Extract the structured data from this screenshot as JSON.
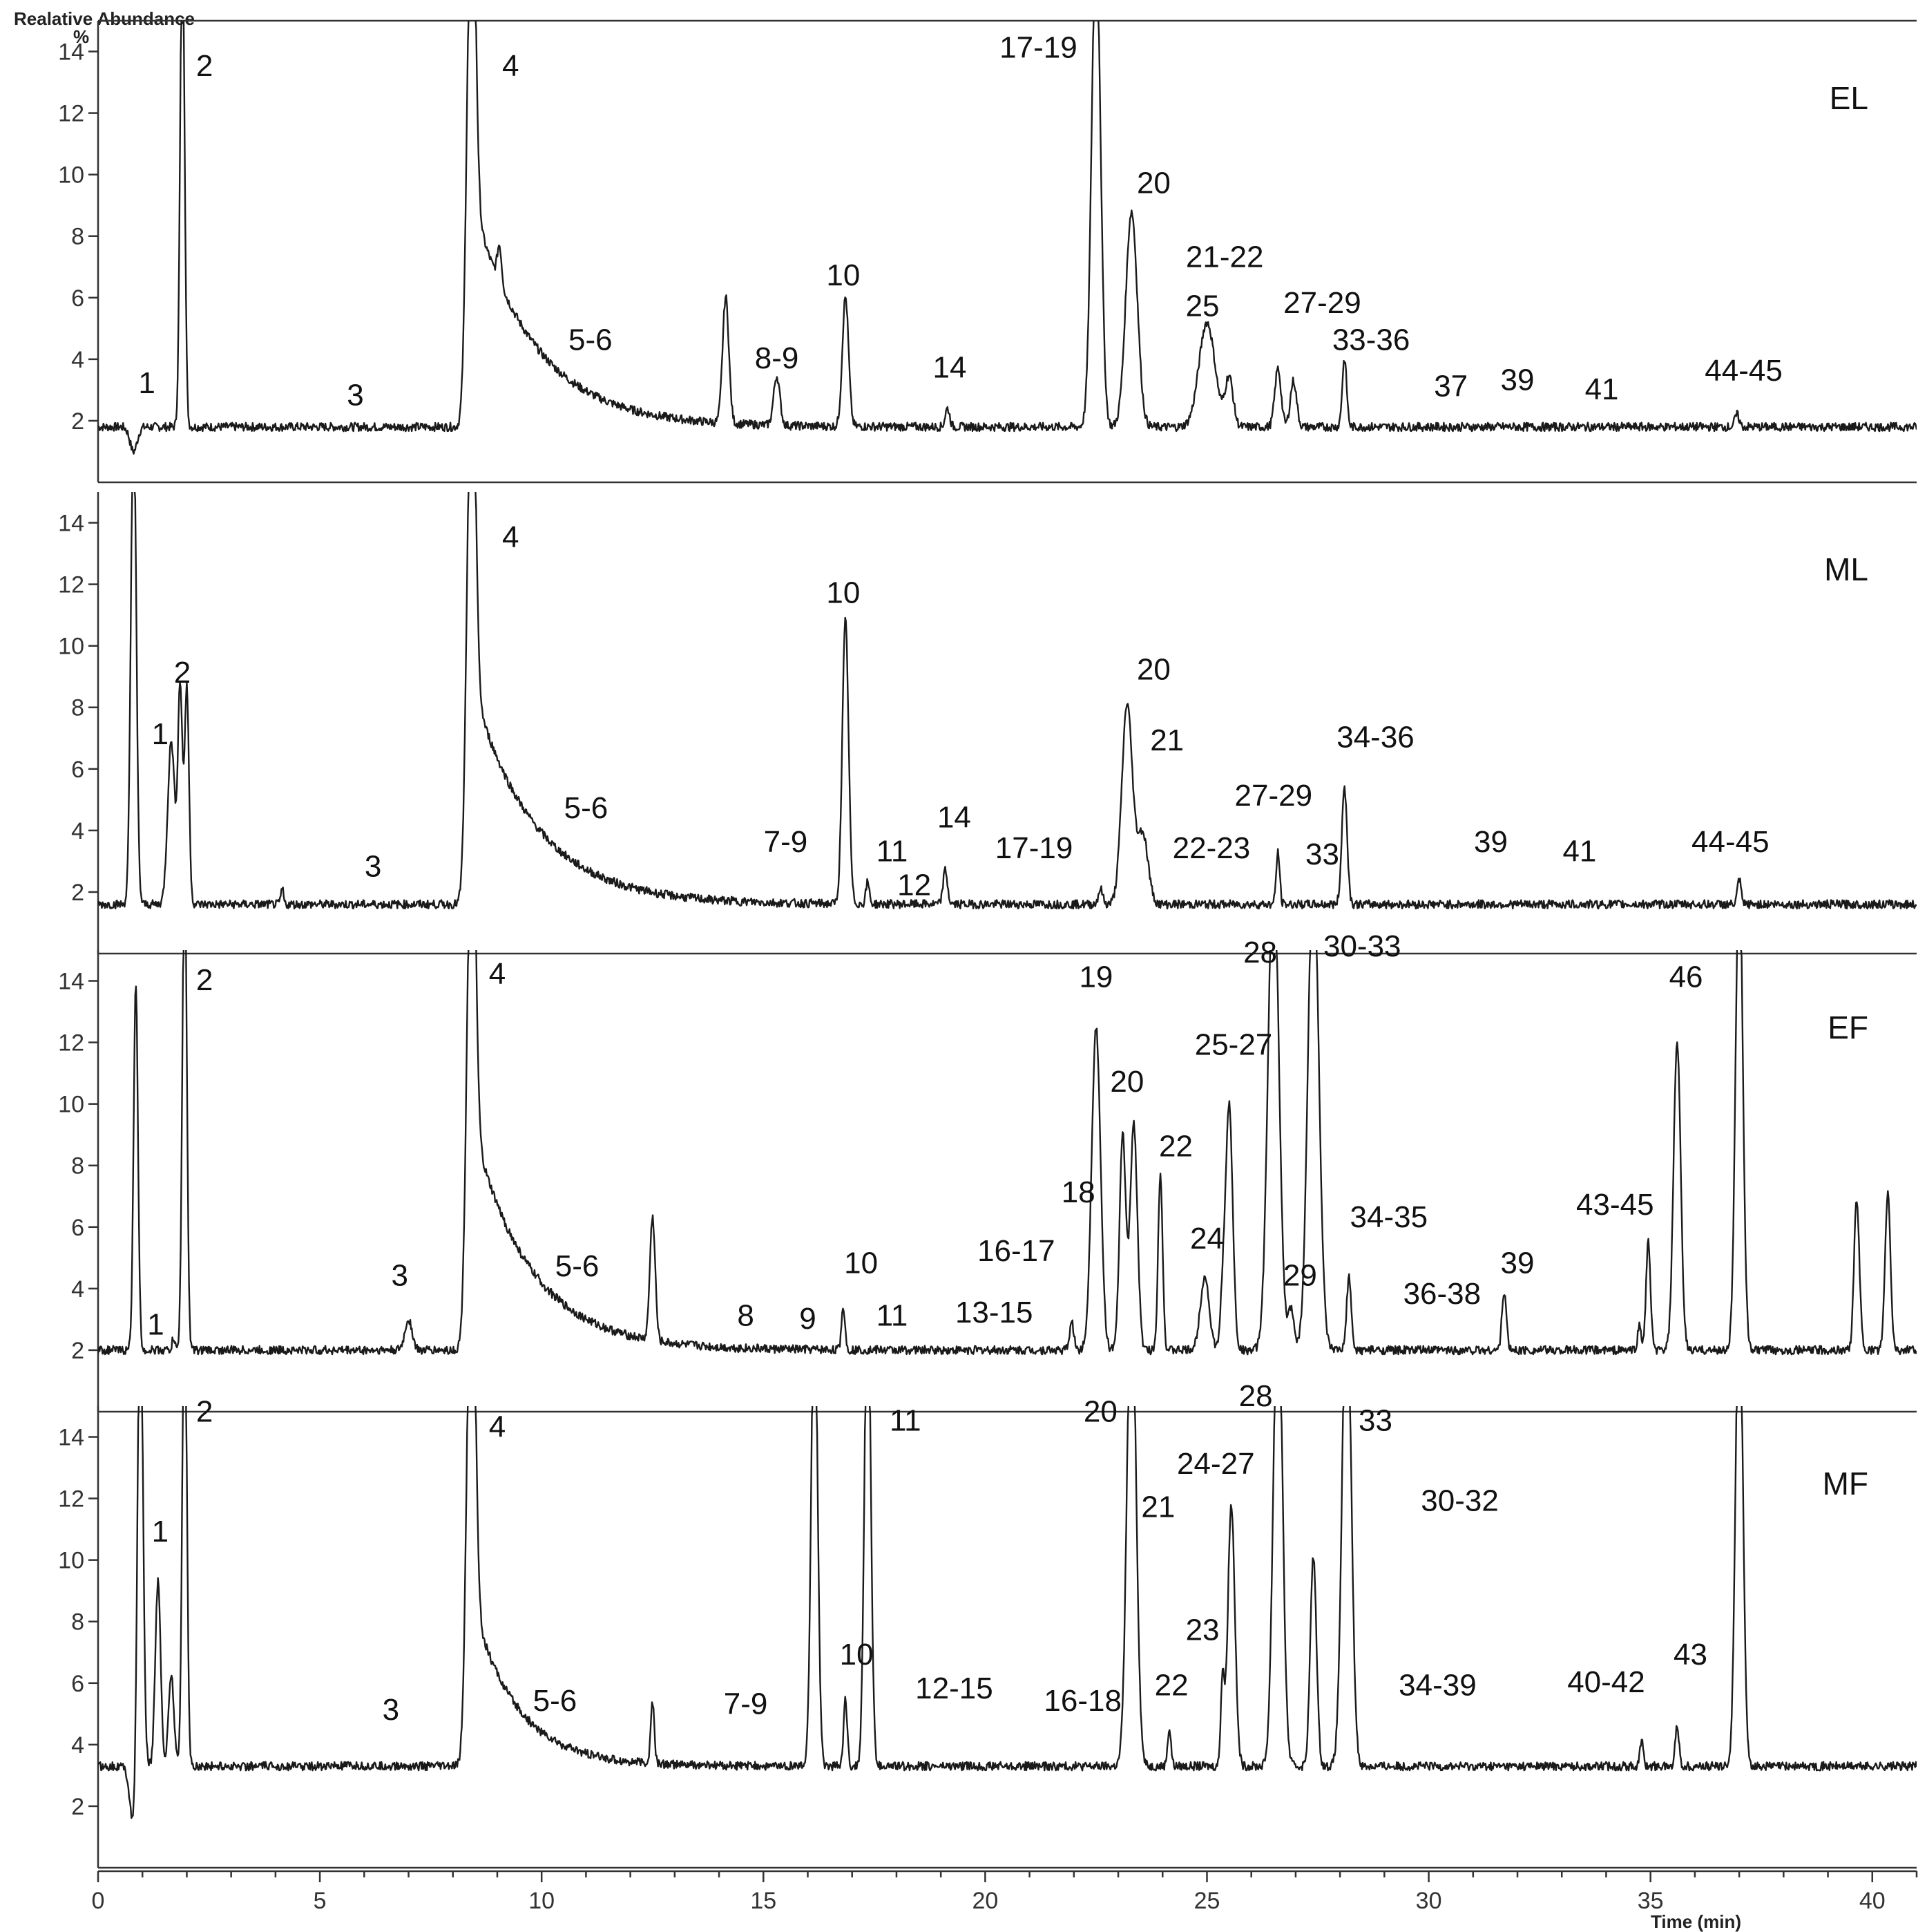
{
  "chart_data": {
    "type": "line",
    "title": "",
    "ylabel": "Realative Abundance",
    "ylabel_unit": "%",
    "xlabel": "Time (min)",
    "xlim": [
      0,
      41
    ],
    "ylim": [
      0,
      15
    ],
    "x_ticks": [
      0,
      5,
      10,
      15,
      20,
      25,
      30,
      35,
      40
    ],
    "y_ticks": [
      2,
      4,
      6,
      8,
      10,
      12,
      14
    ],
    "panels": [
      {
        "name": "EL",
        "baseline": 1.8,
        "peaks": [
          {
            "t": 0.8,
            "h": -0.8,
            "w": 0.08
          },
          {
            "t": 1.9,
            "h": 16,
            "w": 0.05
          },
          {
            "t": 8.4,
            "h": 16,
            "w": 0.09,
            "tail": [
              7.5,
              1.4
            ]
          },
          {
            "t": 9.05,
            "h": 1.2,
            "w": 0.05
          },
          {
            "t": 14.15,
            "h": 4.1,
            "w": 0.07
          },
          {
            "t": 15.3,
            "h": 1.6,
            "w": 0.07
          },
          {
            "t": 16.85,
            "h": 4.2,
            "w": 0.07
          },
          {
            "t": 19.15,
            "h": 0.6,
            "w": 0.05
          },
          {
            "t": 22.5,
            "h": 16,
            "w": 0.1
          },
          {
            "t": 23.3,
            "h": 7.0,
            "w": 0.13
          },
          {
            "t": 25.0,
            "h": 3.4,
            "w": 0.18
          },
          {
            "t": 25.5,
            "h": 1.6,
            "w": 0.09
          },
          {
            "t": 26.6,
            "h": 1.9,
            "w": 0.07
          },
          {
            "t": 26.95,
            "h": 1.5,
            "w": 0.07
          },
          {
            "t": 28.1,
            "h": 2.2,
            "w": 0.05
          },
          {
            "t": 36.95,
            "h": 0.4,
            "w": 0.05
          }
        ],
        "labels": [
          {
            "text": "1",
            "t": 1.1,
            "y": 2.9
          },
          {
            "text": "2",
            "t": 2.4,
            "y": 13.2
          },
          {
            "text": "3",
            "t": 5.8,
            "y": 2.5
          },
          {
            "text": "4",
            "t": 9.3,
            "y": 13.2
          },
          {
            "text": "5-6",
            "t": 11.1,
            "y": 4.3
          },
          {
            "text": "8-9",
            "t": 15.3,
            "y": 3.7
          },
          {
            "text": "10",
            "t": 16.8,
            "y": 6.4
          },
          {
            "text": "14",
            "t": 19.2,
            "y": 3.4
          },
          {
            "text": "17-19",
            "t": 21.2,
            "y": 13.8
          },
          {
            "text": "20",
            "t": 23.8,
            "y": 9.4
          },
          {
            "text": "21-22",
            "t": 25.4,
            "y": 7.0
          },
          {
            "text": "25",
            "t": 24.9,
            "y": 5.4
          },
          {
            "text": "27-29",
            "t": 27.6,
            "y": 5.5
          },
          {
            "text": "33-36",
            "t": 28.7,
            "y": 4.3
          },
          {
            "text": "37",
            "t": 30.5,
            "y": 2.8
          },
          {
            "text": "39",
            "t": 32.0,
            "y": 3.0
          },
          {
            "text": "41",
            "t": 33.9,
            "y": 2.7
          },
          {
            "text": "44-45",
            "t": 37.1,
            "y": 3.3
          }
        ]
      },
      {
        "name": "ML",
        "baseline": 1.6,
        "peaks": [
          {
            "t": 0.8,
            "h": 16,
            "w": 0.06
          },
          {
            "t": 1.65,
            "h": 5.3,
            "w": 0.08
          },
          {
            "t": 1.85,
            "h": 7.0,
            "w": 0.05
          },
          {
            "t": 2.0,
            "h": 7.0,
            "w": 0.05
          },
          {
            "t": 8.4,
            "h": 16,
            "w": 0.09,
            "tail": [
              7.3,
              1.4
            ]
          },
          {
            "t": 4.15,
            "h": 0.5,
            "w": 0.03
          },
          {
            "t": 16.85,
            "h": 9.2,
            "w": 0.07
          },
          {
            "t": 17.35,
            "h": 0.7,
            "w": 0.04
          },
          {
            "t": 19.1,
            "h": 1.1,
            "w": 0.05
          },
          {
            "t": 22.6,
            "h": 0.5,
            "w": 0.05
          },
          {
            "t": 23.2,
            "h": 6.5,
            "w": 0.12
          },
          {
            "t": 23.55,
            "h": 2.3,
            "w": 0.12
          },
          {
            "t": 26.6,
            "h": 1.7,
            "w": 0.04
          },
          {
            "t": 28.1,
            "h": 3.8,
            "w": 0.06
          },
          {
            "t": 37.0,
            "h": 0.8,
            "w": 0.04
          }
        ],
        "labels": [
          {
            "text": "1",
            "t": 1.4,
            "y": 6.8
          },
          {
            "text": "2",
            "t": 1.9,
            "y": 8.8
          },
          {
            "text": "3",
            "t": 6.2,
            "y": 2.5
          },
          {
            "text": "4",
            "t": 9.3,
            "y": 13.2
          },
          {
            "text": "5-6",
            "t": 11.0,
            "y": 4.4
          },
          {
            "text": "7-9",
            "t": 15.5,
            "y": 3.3
          },
          {
            "text": "10",
            "t": 16.8,
            "y": 11.4
          },
          {
            "text": "11",
            "t": 17.9,
            "y": 3.0
          },
          {
            "text": "12",
            "t": 18.4,
            "y": 1.9
          },
          {
            "text": "14",
            "t": 19.3,
            "y": 4.1
          },
          {
            "text": "17-19",
            "t": 21.1,
            "y": 3.1
          },
          {
            "text": "20",
            "t": 23.8,
            "y": 8.9
          },
          {
            "text": "21",
            "t": 24.1,
            "y": 6.6
          },
          {
            "text": "22-23",
            "t": 25.1,
            "y": 3.1
          },
          {
            "text": "27-29",
            "t": 26.5,
            "y": 4.8
          },
          {
            "text": "33",
            "t": 27.6,
            "y": 2.9
          },
          {
            "text": "34-36",
            "t": 28.8,
            "y": 6.7
          },
          {
            "text": "39",
            "t": 31.4,
            "y": 3.3
          },
          {
            "text": "41",
            "t": 33.4,
            "y": 3.0
          },
          {
            "text": "44-45",
            "t": 36.8,
            "y": 3.3
          }
        ]
      },
      {
        "name": "EF",
        "baseline": 2.0,
        "peaks": [
          {
            "t": 0.85,
            "h": 11.8,
            "w": 0.05
          },
          {
            "t": 1.7,
            "h": 0.4,
            "w": 0.03
          },
          {
            "t": 1.95,
            "h": 16,
            "w": 0.05
          },
          {
            "t": 8.4,
            "h": 16,
            "w": 0.09,
            "tail": [
              7.5,
              1.3
            ]
          },
          {
            "t": 7.0,
            "h": 1.0,
            "w": 0.08
          },
          {
            "t": 12.5,
            "h": 4.0,
            "w": 0.06
          },
          {
            "t": 16.8,
            "h": 1.4,
            "w": 0.04
          },
          {
            "t": 21.95,
            "h": 0.9,
            "w": 0.05
          },
          {
            "t": 22.5,
            "h": 10.5,
            "w": 0.1
          },
          {
            "t": 23.1,
            "h": 7.0,
            "w": 0.07
          },
          {
            "t": 23.35,
            "h": 7.4,
            "w": 0.08
          },
          {
            "t": 23.95,
            "h": 5.8,
            "w": 0.05
          },
          {
            "t": 24.95,
            "h": 2.4,
            "w": 0.1
          },
          {
            "t": 25.35,
            "h": 1.5,
            "w": 0.05
          },
          {
            "t": 25.5,
            "h": 8.0,
            "w": 0.08
          },
          {
            "t": 26.5,
            "h": 16,
            "w": 0.12
          },
          {
            "t": 26.9,
            "h": 1.3,
            "w": 0.07
          },
          {
            "t": 27.4,
            "h": 16,
            "w": 0.12
          },
          {
            "t": 28.2,
            "h": 2.4,
            "w": 0.05
          },
          {
            "t": 31.7,
            "h": 1.9,
            "w": 0.05
          },
          {
            "t": 34.75,
            "h": 0.8,
            "w": 0.04
          },
          {
            "t": 34.95,
            "h": 3.5,
            "w": 0.05
          },
          {
            "t": 35.6,
            "h": 10.0,
            "w": 0.08
          },
          {
            "t": 37.0,
            "h": 16,
            "w": 0.08
          },
          {
            "t": 39.65,
            "h": 4.9,
            "w": 0.06
          },
          {
            "t": 40.35,
            "h": 5.1,
            "w": 0.06
          }
        ],
        "labels": [
          {
            "text": "1",
            "t": 1.3,
            "y": 2.5
          },
          {
            "text": "2",
            "t": 2.4,
            "y": 13.7
          },
          {
            "text": "3",
            "t": 6.8,
            "y": 4.1
          },
          {
            "text": "4",
            "t": 9.0,
            "y": 13.9
          },
          {
            "text": "5-6",
            "t": 10.8,
            "y": 4.4
          },
          {
            "text": "8",
            "t": 14.6,
            "y": 2.8
          },
          {
            "text": "9",
            "t": 16.0,
            "y": 2.7
          },
          {
            "text": "10",
            "t": 17.2,
            "y": 4.5
          },
          {
            "text": "11",
            "t": 17.9,
            "y": 2.8
          },
          {
            "text": "13-15",
            "t": 20.2,
            "y": 2.9
          },
          {
            "text": "16-17",
            "t": 20.7,
            "y": 4.9
          },
          {
            "text": "18",
            "t": 22.1,
            "y": 6.8
          },
          {
            "text": "19",
            "t": 22.5,
            "y": 13.8
          },
          {
            "text": "20",
            "t": 23.2,
            "y": 10.4
          },
          {
            "text": "22",
            "t": 24.3,
            "y": 8.3
          },
          {
            "text": "24",
            "t": 25.0,
            "y": 5.3
          },
          {
            "text": "25-27",
            "t": 25.6,
            "y": 11.6
          },
          {
            "text": "28",
            "t": 26.2,
            "y": 14.6
          },
          {
            "text": "29",
            "t": 27.1,
            "y": 4.1
          },
          {
            "text": "30-33",
            "t": 28.5,
            "y": 14.8
          },
          {
            "text": "34-35",
            "t": 29.1,
            "y": 6.0
          },
          {
            "text": "36-38",
            "t": 30.3,
            "y": 3.5
          },
          {
            "text": "39",
            "t": 32.0,
            "y": 4.5
          },
          {
            "text": "43-45",
            "t": 34.2,
            "y": 6.4
          },
          {
            "text": "46",
            "t": 35.8,
            "y": 13.8
          },
          {
            "text": "EF",
            "t": 40.0,
            "y": 12.0
          }
        ]
      },
      {
        "name": "MF",
        "baseline": 3.3,
        "peaks": [
          {
            "t": 0.8,
            "h": -2.0,
            "w": 0.08
          },
          {
            "t": 0.95,
            "h": 16,
            "w": 0.06
          },
          {
            "t": 1.35,
            "h": 6.0,
            "w": 0.06
          },
          {
            "t": 1.65,
            "h": 3.0,
            "w": 0.06
          },
          {
            "t": 1.95,
            "h": 16,
            "w": 0.05
          },
          {
            "t": 8.4,
            "h": 16,
            "w": 0.09,
            "tail": [
              5.5,
              1.0
            ]
          },
          {
            "t": 12.5,
            "h": 2.0,
            "w": 0.04
          },
          {
            "t": 16.15,
            "h": 16,
            "w": 0.07
          },
          {
            "t": 16.85,
            "h": 2.2,
            "w": 0.04
          },
          {
            "t": 17.35,
            "h": 16,
            "w": 0.07
          },
          {
            "t": 23.3,
            "h": 16,
            "w": 0.1
          },
          {
            "t": 24.15,
            "h": 1.2,
            "w": 0.04
          },
          {
            "t": 25.35,
            "h": 2.8,
            "w": 0.04
          },
          {
            "t": 25.55,
            "h": 8.5,
            "w": 0.08
          },
          {
            "t": 26.6,
            "h": 16,
            "w": 0.1
          },
          {
            "t": 27.4,
            "h": 6.8,
            "w": 0.07
          },
          {
            "t": 28.15,
            "h": 16,
            "w": 0.1
          },
          {
            "t": 34.8,
            "h": 0.8,
            "w": 0.04
          },
          {
            "t": 35.6,
            "h": 1.4,
            "w": 0.04
          },
          {
            "t": 37.0,
            "h": 16,
            "w": 0.08
          }
        ],
        "labels": [
          {
            "text": "1",
            "t": 1.4,
            "y": 10.6
          },
          {
            "text": "2",
            "t": 2.4,
            "y": 14.5
          },
          {
            "text": "3",
            "t": 6.6,
            "y": 4.8
          },
          {
            "text": "4",
            "t": 9.0,
            "y": 14.0
          },
          {
            "text": "5-6",
            "t": 10.3,
            "y": 5.1
          },
          {
            "text": "7-9",
            "t": 14.6,
            "y": 5.0
          },
          {
            "text": "10",
            "t": 17.1,
            "y": 6.6
          },
          {
            "text": "11",
            "t": 18.2,
            "y": 14.2
          },
          {
            "text": "12-15",
            "t": 19.3,
            "y": 5.5
          },
          {
            "text": "16-18",
            "t": 22.2,
            "y": 5.1
          },
          {
            "text": "20",
            "t": 22.6,
            "y": 14.5
          },
          {
            "text": "21",
            "t": 23.9,
            "y": 11.4
          },
          {
            "text": "22",
            "t": 24.2,
            "y": 5.6
          },
          {
            "text": "23",
            "t": 24.9,
            "y": 7.4
          },
          {
            "text": "24-27",
            "t": 25.2,
            "y": 12.8
          },
          {
            "text": "28",
            "t": 26.1,
            "y": 15.0
          },
          {
            "text": "30-32",
            "t": 30.7,
            "y": 11.6
          },
          {
            "text": "33",
            "t": 28.8,
            "y": 14.2
          },
          {
            "text": "34-39",
            "t": 30.2,
            "y": 5.6
          },
          {
            "text": "40-42",
            "t": 34.0,
            "y": 5.7
          },
          {
            "text": "43",
            "t": 35.9,
            "y": 6.6
          }
        ]
      }
    ]
  },
  "panel_titles": [
    "EL",
    "ML",
    "EF",
    "MF"
  ]
}
